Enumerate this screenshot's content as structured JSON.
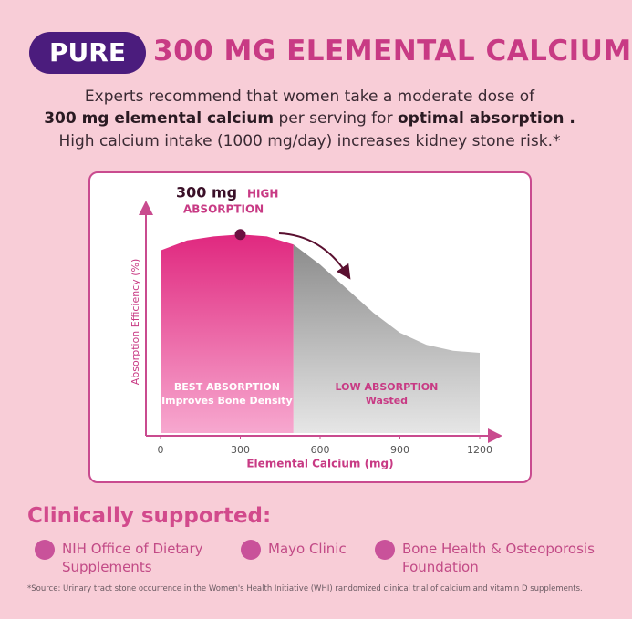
{
  "badge": "PURE",
  "headline": "300 MG ELEMENTAL CALCIUM",
  "intro": {
    "line1": "Experts recommend that women take a moderate dose of",
    "line2": [
      {
        "text": "300 mg elemental calcium",
        "bold": true
      },
      {
        "text": " per serving for ",
        "bold": false
      },
      {
        "text": "optimal absorption .",
        "bold": true
      }
    ],
    "line3": "High calcium intake (1000 mg/day) increases kidney stone risk.*"
  },
  "chart_data": {
    "type": "area",
    "x_label": "Elemental Calcium (mg)",
    "y_label": "Absorption Efficiency (%)",
    "x": [
      0,
      100,
      200,
      300,
      400,
      500,
      600,
      700,
      800,
      900,
      1000,
      1100,
      1200
    ],
    "values": [
      91,
      96,
      98,
      99,
      98,
      94,
      84,
      72,
      60,
      50,
      44,
      41,
      40
    ],
    "xlim": [
      0,
      1200
    ],
    "xticks": [
      0,
      300,
      600,
      900,
      1200
    ],
    "ylim": [
      0,
      100
    ],
    "marker": {
      "x": 300,
      "label": "300 mg",
      "label_highlight": "HIGH",
      "sublabel": "ABSORPTION"
    },
    "regions": [
      {
        "range": [
          0,
          500
        ],
        "label": "BEST ABSORPTION",
        "sublabel": "Improves Bone Density",
        "color": "#e0287f"
      },
      {
        "range": [
          500,
          1200
        ],
        "label": "LOW ABSORPTION",
        "sublabel": "Wasted",
        "color": "#8c8c8c"
      }
    ]
  },
  "clinical": {
    "title": "Clinically supported:",
    "items": [
      "NIH  Office of Dietary Supplements",
      "Mayo Clinic",
      "Bone Health & Osteoporosis Foundation"
    ]
  },
  "footnote": "*Source: Urinary tract stone occurrence in the Women's Health Initiative (WHI) randomized clinical trial of calcium and vitamin D supplements."
}
